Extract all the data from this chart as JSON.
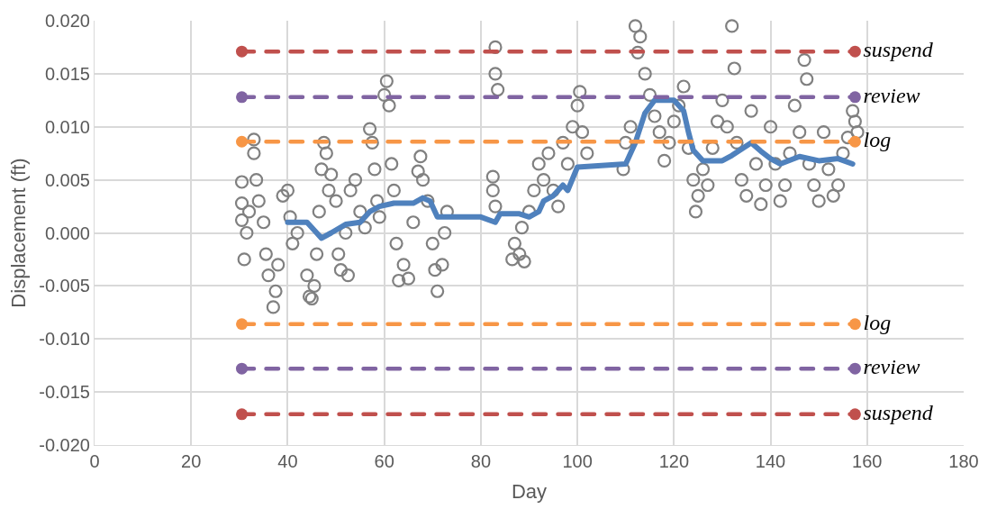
{
  "chart_data": {
    "type": "scatter",
    "xlabel": "Day",
    "ylabel": "Displacement (ft)",
    "xlim": [
      0,
      180
    ],
    "xticks": [
      0,
      20,
      40,
      60,
      80,
      100,
      120,
      140,
      160,
      180
    ],
    "ylim": [
      -0.02,
      0.02
    ],
    "yticks": [
      {
        "value": 0.02,
        "label": "0.020"
      },
      {
        "value": 0.015,
        "label": "0.015"
      },
      {
        "value": 0.01,
        "label": "0.010"
      },
      {
        "value": 0.005,
        "label": "0.005"
      },
      {
        "value": 0,
        "label": "0.000"
      },
      {
        "value": -0.005,
        "label": "-0.005"
      },
      {
        "value": -0.01,
        "label": "-0.010"
      },
      {
        "value": -0.015,
        "label": "-0.015"
      },
      {
        "value": -0.02,
        "label": "-0.020"
      }
    ],
    "grid": true,
    "series": [
      {
        "marker": "circle",
        "color": "#808080",
        "x": [
          30.5,
          30.5,
          30.5,
          31,
          31.5,
          32,
          33,
          33,
          33.5,
          34,
          35,
          35.5,
          36,
          37,
          37.5,
          38,
          39,
          40,
          40.5,
          41,
          42,
          44,
          44.5,
          45,
          45.5,
          46,
          46.5,
          47,
          47.5,
          48,
          48.5,
          49,
          50,
          50.5,
          51,
          52,
          52.5,
          53,
          54,
          55,
          56,
          57,
          57.5,
          58,
          58.5,
          59,
          60,
          60.5,
          61,
          61.5,
          62,
          62.5,
          63,
          64,
          65,
          66,
          67,
          67.5,
          68,
          69,
          70,
          70.5,
          71,
          72,
          72.5,
          73,
          82.5,
          82.5,
          83,
          83,
          83,
          83.5,
          86.5,
          87,
          88,
          88.5,
          89,
          90,
          91,
          92,
          93,
          94,
          95,
          96,
          97,
          98,
          99,
          100,
          100.5,
          101,
          102,
          109.5,
          110,
          111,
          112,
          112.5,
          113,
          114,
          115,
          116,
          117,
          118,
          119,
          120,
          121,
          122,
          123,
          124,
          124.5,
          125,
          126,
          127,
          128,
          129,
          130,
          131,
          132,
          132.5,
          133,
          134,
          135,
          136,
          137,
          138,
          139,
          140,
          141,
          142,
          143,
          144,
          145,
          146,
          147,
          147.5,
          148,
          149,
          150,
          151,
          152,
          153,
          154,
          155,
          156,
          157,
          157.5,
          158
        ],
        "values": [
          0.0048,
          0.0028,
          0.0012,
          -0.0025,
          0.0,
          0.002,
          0.0088,
          0.0075,
          0.005,
          0.003,
          0.001,
          -0.002,
          -0.004,
          -0.007,
          -0.0055,
          -0.003,
          0.0035,
          0.004,
          0.0015,
          -0.001,
          0.0,
          -0.004,
          -0.006,
          -0.0062,
          -0.005,
          -0.002,
          0.002,
          0.006,
          0.0085,
          0.0075,
          0.004,
          0.0055,
          0.003,
          -0.002,
          -0.0035,
          0.0,
          -0.004,
          0.004,
          0.005,
          0.002,
          0.0005,
          0.0098,
          0.0085,
          0.006,
          0.003,
          0.0015,
          0.013,
          0.0143,
          0.012,
          0.0065,
          0.004,
          -0.001,
          -0.0045,
          -0.003,
          -0.0043,
          0.001,
          0.0058,
          0.0072,
          0.005,
          0.003,
          -0.001,
          -0.0035,
          -0.0055,
          -0.003,
          0.0,
          0.002,
          0.0053,
          0.004,
          0.0025,
          0.0175,
          0.015,
          0.0135,
          -0.0025,
          -0.001,
          -0.002,
          0.0005,
          -0.0027,
          0.002,
          0.004,
          0.0065,
          0.005,
          0.0075,
          0.004,
          0.0025,
          0.0085,
          0.0065,
          0.01,
          0.012,
          0.0133,
          0.0095,
          0.0075,
          0.006,
          0.0085,
          0.01,
          0.0195,
          0.017,
          0.0185,
          0.015,
          0.013,
          0.011,
          0.0095,
          0.0068,
          0.0085,
          0.0105,
          0.012,
          0.0138,
          0.008,
          0.005,
          0.002,
          0.0035,
          0.006,
          0.0045,
          0.008,
          0.0105,
          0.0125,
          0.01,
          0.0195,
          0.0155,
          0.0085,
          0.005,
          0.0035,
          0.0115,
          0.0065,
          0.0027,
          0.0045,
          0.01,
          0.0065,
          0.003,
          0.0045,
          0.0075,
          0.012,
          0.0095,
          0.0163,
          0.0145,
          0.0065,
          0.0045,
          0.003,
          0.0095,
          0.006,
          0.0035,
          0.0045,
          0.0075,
          0.009,
          0.0115,
          0.0105,
          0.0095
        ]
      },
      {
        "type": "line",
        "marker": "none",
        "line_style": "solid",
        "color": "#4f81bd",
        "x": [
          40,
          44,
          46,
          47,
          49,
          52,
          55,
          57,
          59,
          62,
          66,
          68,
          69.5,
          71,
          76,
          80,
          83,
          84,
          88,
          90,
          92,
          93,
          95,
          97,
          98,
          100,
          110,
          112,
          114,
          116,
          120,
          122,
          123,
          124,
          126,
          130,
          132,
          136,
          138,
          140,
          142,
          146,
          150,
          154,
          157
        ],
        "values": [
          0.001,
          0.001,
          0.0,
          -0.0005,
          0.0,
          0.0008,
          0.001,
          0.002,
          0.0025,
          0.0028,
          0.0028,
          0.0033,
          0.003,
          0.0015,
          0.0015,
          0.0015,
          0.001,
          0.0018,
          0.0018,
          0.0015,
          0.002,
          0.003,
          0.0035,
          0.0045,
          0.004,
          0.0062,
          0.0065,
          0.0085,
          0.0113,
          0.0125,
          0.0125,
          0.0115,
          0.0095,
          0.0078,
          0.0068,
          0.0068,
          0.0073,
          0.0085,
          0.0077,
          0.007,
          0.0065,
          0.0072,
          0.0068,
          0.007,
          0.0065
        ]
      },
      {
        "type": "line",
        "name": "suspend",
        "marker": "circle",
        "line_style": "dashed",
        "color": "#c0504d",
        "x": [
          30.5,
          157.5
        ],
        "values": [
          0.0171,
          0.0171
        ]
      },
      {
        "type": "line",
        "name": "review",
        "marker": "circle",
        "line_style": "dashed",
        "color": "#8064a2",
        "x": [
          30.5,
          157.5
        ],
        "values": [
          0.0128,
          0.0128
        ]
      },
      {
        "type": "line",
        "name": "log",
        "marker": "circle",
        "line_style": "dashed",
        "color": "#f79646",
        "x": [
          30.5,
          157.5
        ],
        "values": [
          0.0086,
          0.0086
        ]
      },
      {
        "type": "line",
        "name": "log",
        "marker": "circle",
        "line_style": "dashed",
        "color": "#f79646",
        "x": [
          30.5,
          157.5
        ],
        "values": [
          -0.0086,
          -0.0086
        ]
      },
      {
        "type": "line",
        "name": "review",
        "marker": "circle",
        "line_style": "dashed",
        "color": "#8064a2",
        "x": [
          30.5,
          157.5
        ],
        "values": [
          -0.0128,
          -0.0128
        ]
      },
      {
        "type": "line",
        "name": "suspend",
        "marker": "circle",
        "line_style": "dashed",
        "color": "#c0504d",
        "x": [
          30.5,
          157.5
        ],
        "values": [
          -0.0171,
          -0.0171
        ]
      }
    ]
  }
}
